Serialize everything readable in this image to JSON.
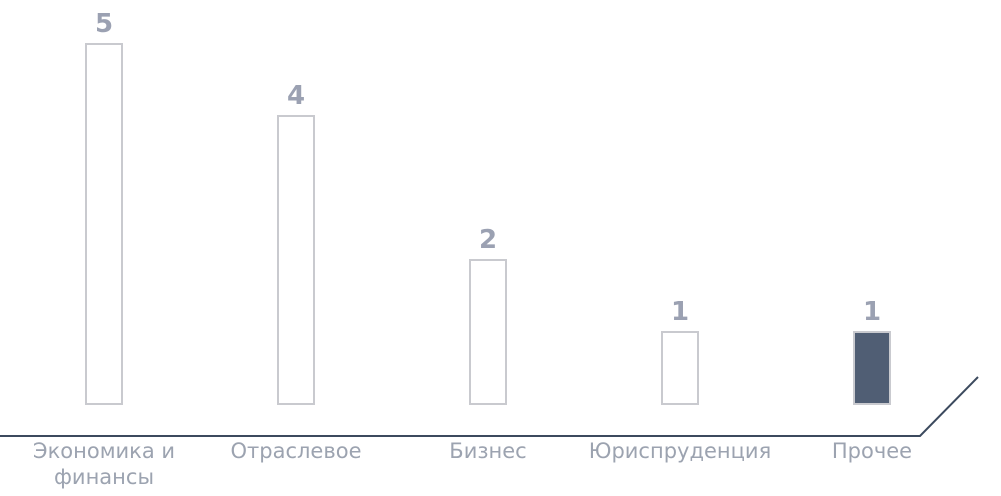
{
  "chart_data": {
    "type": "bar",
    "categories": [
      "Экономика и финансы",
      "Отраслевое",
      "Бизнес",
      "Юриспруденция",
      "Прочее"
    ],
    "values": [
      5,
      4,
      2,
      1,
      1
    ],
    "ylim": [
      0,
      5
    ],
    "colors": [
      "#ffffff",
      "#ffffff",
      "#ffffff",
      "#ffffff",
      "#505e74"
    ],
    "edge_color": "#c9cacf"
  }
}
